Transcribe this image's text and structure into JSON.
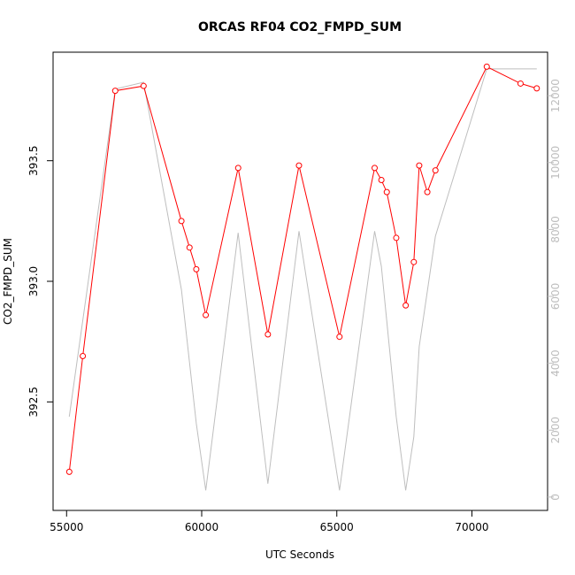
{
  "chart_data": {
    "type": "line",
    "title": "ORCAS RF04 CO2_FMPD_SUM",
    "xlabel": "UTC Seconds",
    "ylabel": "CO2_FMPD_SUM",
    "xlim": [
      54500,
      72800
    ],
    "ylim": [
      392.05,
      393.95
    ],
    "y2lim": [
      -400,
      13300
    ],
    "xticks": [
      55000,
      60000,
      65000,
      70000
    ],
    "yticks": [
      392.5,
      393.0,
      393.5
    ],
    "ytick_labels": [
      "392.5",
      "393.0",
      "393.5"
    ],
    "y2ticks": [
      0,
      2000,
      4000,
      6000,
      8000,
      10000,
      12000
    ],
    "grid": false,
    "legend": "none",
    "colors": {
      "primary": "#ff0000",
      "secondary": "#bebebe"
    },
    "series": [
      {
        "axis": "left",
        "x": [
          55100,
          55600,
          56800,
          57850,
          59250,
          59550,
          59800,
          60150,
          61350,
          62450,
          63600,
          65100,
          66400,
          66650,
          66850,
          67200,
          67550,
          67850,
          68050,
          68350,
          68650,
          70550,
          71800,
          72400
        ],
        "y": [
          392.21,
          392.69,
          393.79,
          393.81,
          393.25,
          393.14,
          393.05,
          392.86,
          393.47,
          392.78,
          393.48,
          392.77,
          393.47,
          393.42,
          393.37,
          393.18,
          392.9,
          393.08,
          393.48,
          393.37,
          393.46,
          393.89,
          393.82,
          393.8
        ]
      },
      {
        "axis": "right",
        "x": [
          55100,
          56800,
          57850,
          59250,
          59800,
          60150,
          61350,
          62450,
          63600,
          65100,
          66400,
          66650,
          67200,
          67550,
          67850,
          68050,
          68650,
          70550,
          72400
        ],
        "y": [
          2400,
          12200,
          12400,
          6200,
          2200,
          200,
          7900,
          400,
          7950,
          200,
          7950,
          6900,
          2400,
          200,
          1800,
          4500,
          7800,
          12800,
          12800
        ]
      }
    ]
  }
}
